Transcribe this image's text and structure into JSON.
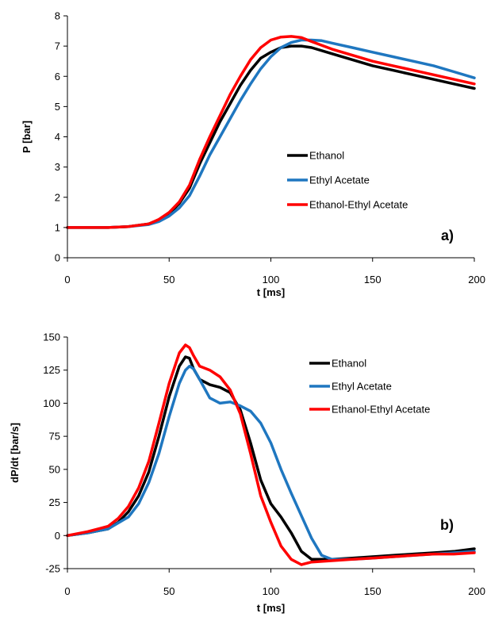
{
  "chart_data": [
    {
      "type": "line",
      "panel_label": "a)",
      "xlabel": "t [ms]",
      "ylabel": "P [bar]",
      "xlim": [
        0,
        200
      ],
      "ylim": [
        0,
        8
      ],
      "xticks": [
        0,
        50,
        100,
        150,
        200
      ],
      "yticks": [
        0,
        1,
        2,
        3,
        4,
        5,
        6,
        7,
        8
      ],
      "grid": false,
      "legend_position": "right-middle",
      "series": [
        {
          "name": "Ethanol",
          "color": "#000000",
          "x": [
            0,
            20,
            30,
            40,
            45,
            50,
            55,
            60,
            65,
            70,
            75,
            80,
            85,
            90,
            95,
            100,
            105,
            110,
            115,
            120,
            130,
            140,
            150,
            160,
            170,
            180,
            190,
            200
          ],
          "y": [
            1.0,
            1.0,
            1.03,
            1.12,
            1.25,
            1.45,
            1.8,
            2.3,
            3.1,
            3.8,
            4.5,
            5.1,
            5.7,
            6.2,
            6.6,
            6.8,
            6.95,
            7.0,
            7.0,
            6.95,
            6.75,
            6.55,
            6.35,
            6.2,
            6.05,
            5.9,
            5.75,
            5.6
          ]
        },
        {
          "name": "Ethyl Acetate",
          "color": "#1f77c0",
          "x": [
            0,
            20,
            30,
            40,
            45,
            50,
            55,
            60,
            65,
            70,
            75,
            80,
            85,
            90,
            95,
            100,
            105,
            110,
            115,
            120,
            125,
            130,
            140,
            150,
            160,
            170,
            180,
            190,
            200
          ],
          "y": [
            1.0,
            1.0,
            1.03,
            1.1,
            1.2,
            1.38,
            1.65,
            2.05,
            2.7,
            3.4,
            4.0,
            4.6,
            5.2,
            5.75,
            6.25,
            6.65,
            6.95,
            7.12,
            7.2,
            7.2,
            7.18,
            7.1,
            6.95,
            6.8,
            6.65,
            6.5,
            6.35,
            6.15,
            5.95
          ]
        },
        {
          "name": "Ethanol-Ethyl Acetate",
          "color": "#ff0000",
          "x": [
            0,
            20,
            30,
            40,
            45,
            50,
            55,
            60,
            65,
            70,
            75,
            80,
            85,
            90,
            95,
            100,
            105,
            110,
            115,
            120,
            130,
            140,
            150,
            160,
            170,
            180,
            190,
            200
          ],
          "y": [
            1.0,
            1.0,
            1.03,
            1.12,
            1.27,
            1.5,
            1.85,
            2.4,
            3.25,
            4.0,
            4.7,
            5.4,
            6.0,
            6.55,
            6.95,
            7.2,
            7.3,
            7.32,
            7.28,
            7.15,
            6.9,
            6.7,
            6.5,
            6.35,
            6.2,
            6.05,
            5.9,
            5.75
          ]
        }
      ]
    },
    {
      "type": "line",
      "panel_label": "b)",
      "xlabel": "t [ms]",
      "ylabel": "dP/dt [bar/s]",
      "xlim": [
        0,
        200
      ],
      "ylim": [
        -25,
        150
      ],
      "xticks": [
        0,
        50,
        100,
        150,
        200
      ],
      "yticks": [
        -25,
        0,
        25,
        50,
        75,
        100,
        125,
        150
      ],
      "grid": false,
      "legend_position": "top-right",
      "series": [
        {
          "name": "Ethanol",
          "color": "#000000",
          "x": [
            0,
            10,
            20,
            25,
            30,
            35,
            40,
            45,
            50,
            55,
            58,
            60,
            62,
            65,
            70,
            75,
            80,
            85,
            90,
            95,
            100,
            105,
            110,
            115,
            120,
            130,
            140,
            150,
            160,
            170,
            180,
            190,
            200
          ],
          "y": [
            0,
            2,
            5,
            10,
            18,
            30,
            48,
            75,
            105,
            128,
            135,
            134,
            126,
            118,
            114,
            112,
            108,
            95,
            70,
            42,
            24,
            14,
            2,
            -12,
            -18,
            -18,
            -17,
            -16,
            -15,
            -14,
            -13,
            -12,
            -10
          ]
        },
        {
          "name": "Ethyl Acetate",
          "color": "#1f77c0",
          "x": [
            0,
            10,
            20,
            30,
            35,
            40,
            45,
            50,
            55,
            58,
            60,
            62,
            65,
            70,
            75,
            80,
            85,
            90,
            95,
            100,
            105,
            110,
            115,
            120,
            125,
            130,
            140,
            150,
            160,
            170,
            180,
            190,
            200
          ],
          "y": [
            0,
            2,
            5,
            14,
            24,
            40,
            62,
            90,
            115,
            125,
            128,
            126,
            118,
            104,
            100,
            101,
            98,
            94,
            85,
            70,
            50,
            32,
            15,
            -2,
            -15,
            -18,
            -18,
            -17,
            -16,
            -15,
            -14,
            -13,
            -12
          ]
        },
        {
          "name": "Ethanol-Ethyl Acetate",
          "color": "#ff0000",
          "x": [
            0,
            10,
            20,
            25,
            30,
            35,
            40,
            45,
            50,
            55,
            58,
            60,
            62,
            65,
            70,
            75,
            80,
            85,
            90,
            95,
            100,
            105,
            110,
            115,
            120,
            130,
            140,
            150,
            160,
            170,
            180,
            190,
            200
          ],
          "y": [
            0,
            3,
            7,
            13,
            22,
            36,
            56,
            85,
            115,
            138,
            144,
            142,
            136,
            128,
            125,
            120,
            110,
            92,
            62,
            30,
            10,
            -8,
            -18,
            -22,
            -20,
            -19,
            -18,
            -17,
            -16,
            -15,
            -14,
            -14,
            -13
          ]
        }
      ]
    }
  ]
}
